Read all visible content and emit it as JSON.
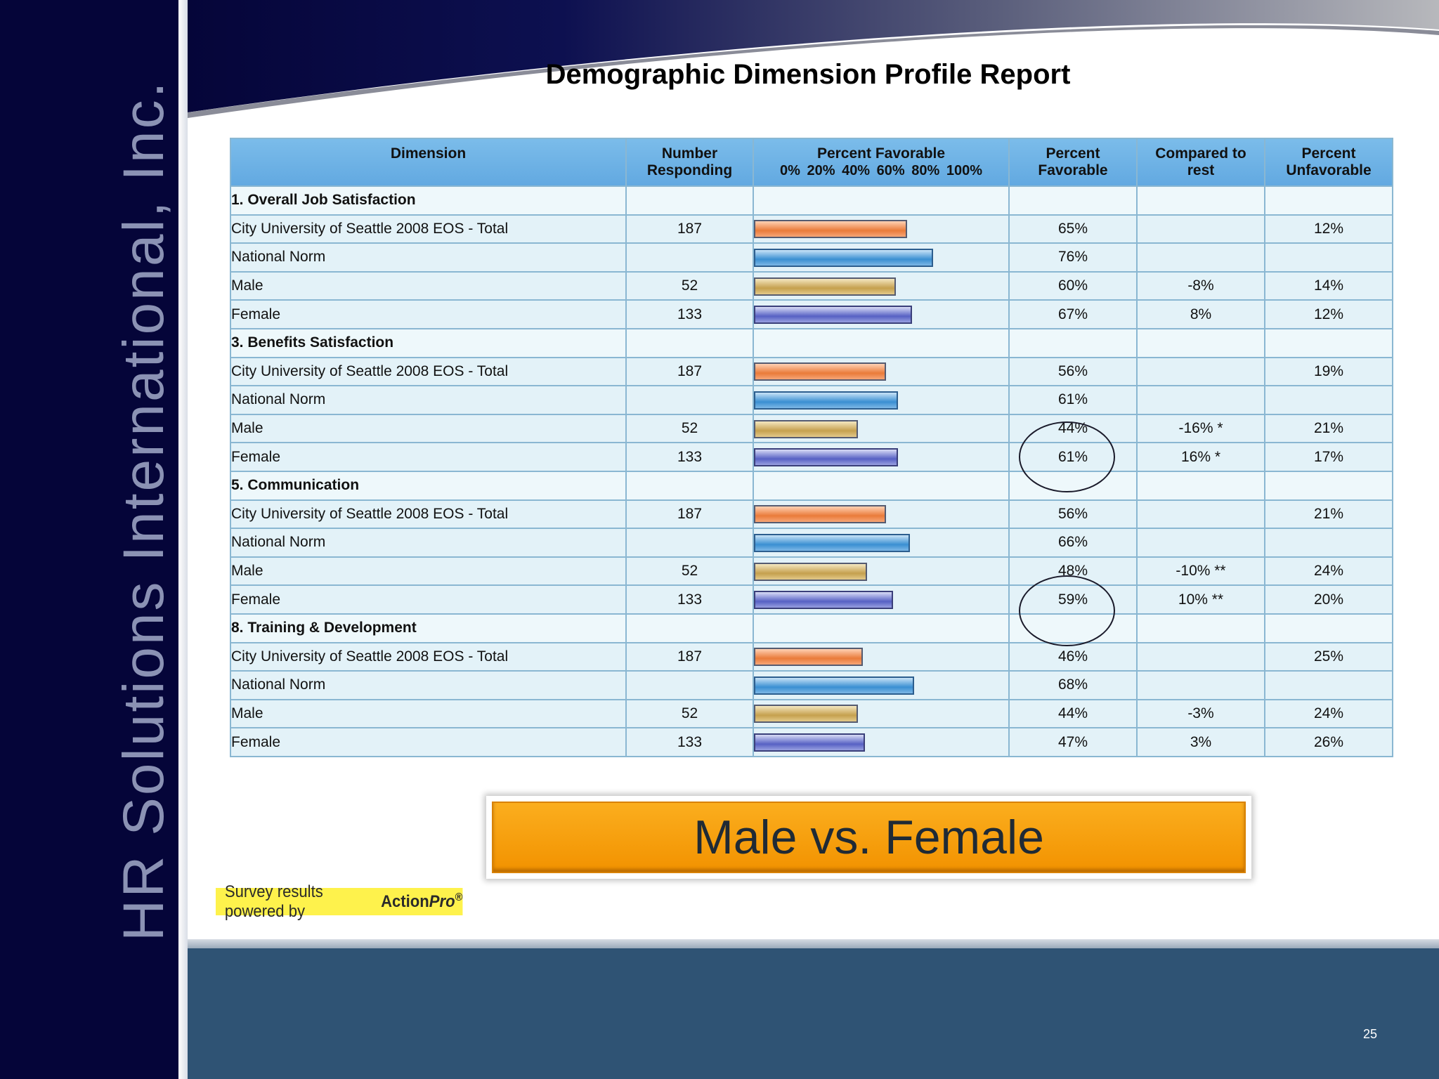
{
  "brand": {
    "vertical_text": "HR Solutions International, Inc."
  },
  "title": "Demographic Dimension Profile Report",
  "table": {
    "headers": {
      "dimension": "Dimension",
      "number": "Number Responding",
      "bar_title": "Percent Favorable",
      "bar_ticks": "0% 20% 40% 60% 80% 100%",
      "favorable": "Percent Favorable",
      "compared": "Compared to rest",
      "unfavorable": "Percent Unfavorable"
    },
    "rows": [
      {
        "type": "section",
        "label": "1. Overall Job Satisfaction"
      },
      {
        "type": "total",
        "label": "City University of Seattle 2008 EOS - Total",
        "n": "187",
        "fav": 65,
        "fav_text": "65%",
        "cmp": "",
        "unfav": "12%"
      },
      {
        "type": "norm",
        "label": "National Norm",
        "n": "",
        "fav": 76,
        "fav_text": "76%",
        "cmp": "",
        "unfav": ""
      },
      {
        "type": "male",
        "label": "Male",
        "n": "52",
        "fav": 60,
        "fav_text": "60%",
        "cmp": "-8%",
        "unfav": "14%"
      },
      {
        "type": "female",
        "label": "Female",
        "n": "133",
        "fav": 67,
        "fav_text": "67%",
        "cmp": "8%",
        "unfav": "12%"
      },
      {
        "type": "section",
        "label": "3. Benefits Satisfaction"
      },
      {
        "type": "total",
        "label": "City University of Seattle 2008 EOS - Total",
        "n": "187",
        "fav": 56,
        "fav_text": "56%",
        "cmp": "",
        "unfav": "19%"
      },
      {
        "type": "norm",
        "label": "National Norm",
        "n": "",
        "fav": 61,
        "fav_text": "61%",
        "cmp": "",
        "unfav": ""
      },
      {
        "type": "male",
        "label": "Male",
        "n": "52",
        "fav": 44,
        "fav_text": "44%",
        "cmp": "-16% *",
        "unfav": "21%"
      },
      {
        "type": "female",
        "label": "Female",
        "n": "133",
        "fav": 61,
        "fav_text": "61%",
        "cmp": "16% *",
        "unfav": "17%"
      },
      {
        "type": "section",
        "label": "5. Communication"
      },
      {
        "type": "total",
        "label": "City University of Seattle 2008 EOS - Total",
        "n": "187",
        "fav": 56,
        "fav_text": "56%",
        "cmp": "",
        "unfav": "21%"
      },
      {
        "type": "norm",
        "label": "National Norm",
        "n": "",
        "fav": 66,
        "fav_text": "66%",
        "cmp": "",
        "unfav": ""
      },
      {
        "type": "male",
        "label": "Male",
        "n": "52",
        "fav": 48,
        "fav_text": "48%",
        "cmp": "-10% **",
        "unfav": "24%"
      },
      {
        "type": "female",
        "label": "Female",
        "n": "133",
        "fav": 59,
        "fav_text": "59%",
        "cmp": "10% **",
        "unfav": "20%"
      },
      {
        "type": "section",
        "label": "8. Training & Development"
      },
      {
        "type": "total",
        "label": "City University of Seattle 2008 EOS - Total",
        "n": "187",
        "fav": 46,
        "fav_text": "46%",
        "cmp": "",
        "unfav": "25%"
      },
      {
        "type": "norm",
        "label": "National Norm",
        "n": "",
        "fav": 68,
        "fav_text": "68%",
        "cmp": "",
        "unfav": ""
      },
      {
        "type": "male",
        "label": "Male",
        "n": "52",
        "fav": 44,
        "fav_text": "44%",
        "cmp": "-3%",
        "unfav": "24%"
      },
      {
        "type": "female",
        "label": "Female",
        "n": "133",
        "fav": 47,
        "fav_text": "47%",
        "cmp": "3%",
        "unfav": "26%"
      }
    ]
  },
  "banner": "Male vs. Female",
  "powered": {
    "prefix": "Survey results powered by",
    "brand": "Action",
    "brand_suffix": "Pro",
    "mark": "®"
  },
  "page_number": "25",
  "colors": {
    "sidebar": "#050539",
    "header_blue": "#6aaee4",
    "total_bar": "#ea7b3a",
    "norm_bar": "#3a8fd2",
    "male_bar": "#c5a04e",
    "female_bar": "#5761c4",
    "banner": "#f39800",
    "footer": "#2f5374"
  }
}
